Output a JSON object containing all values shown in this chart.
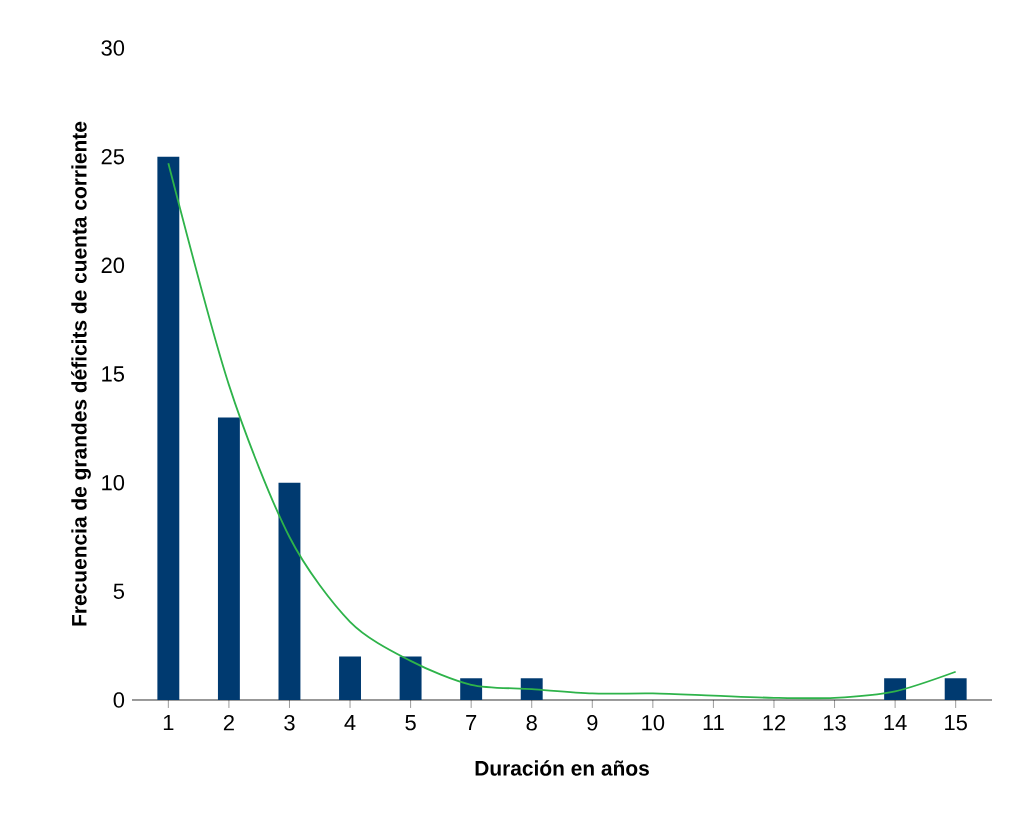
{
  "chart_data": {
    "type": "bar",
    "xlabel": "Duración en años",
    "ylabel": "Frecuencia de grandes déficits de cuenta corriente",
    "categories": [
      "1",
      "2",
      "3",
      "4",
      "5",
      "7",
      "8",
      "9",
      "10",
      "11",
      "12",
      "13",
      "14",
      "15"
    ],
    "ylim": [
      0,
      30
    ],
    "yticks": [
      0,
      5,
      10,
      15,
      20,
      25,
      30
    ],
    "series": [
      {
        "color": "#003a70",
        "values": [
          25,
          13,
          10,
          2,
          2,
          1,
          1,
          0,
          0,
          0,
          0,
          0,
          1,
          1
        ]
      },
      {
        "type": "line",
        "color": "#2eb34a",
        "values": [
          24.7,
          14.5,
          7.5,
          3.6,
          1.8,
          0.7,
          0.5,
          0.3,
          0.3,
          0.2,
          0.1,
          0.1,
          0.4,
          1.3
        ]
      }
    ]
  }
}
